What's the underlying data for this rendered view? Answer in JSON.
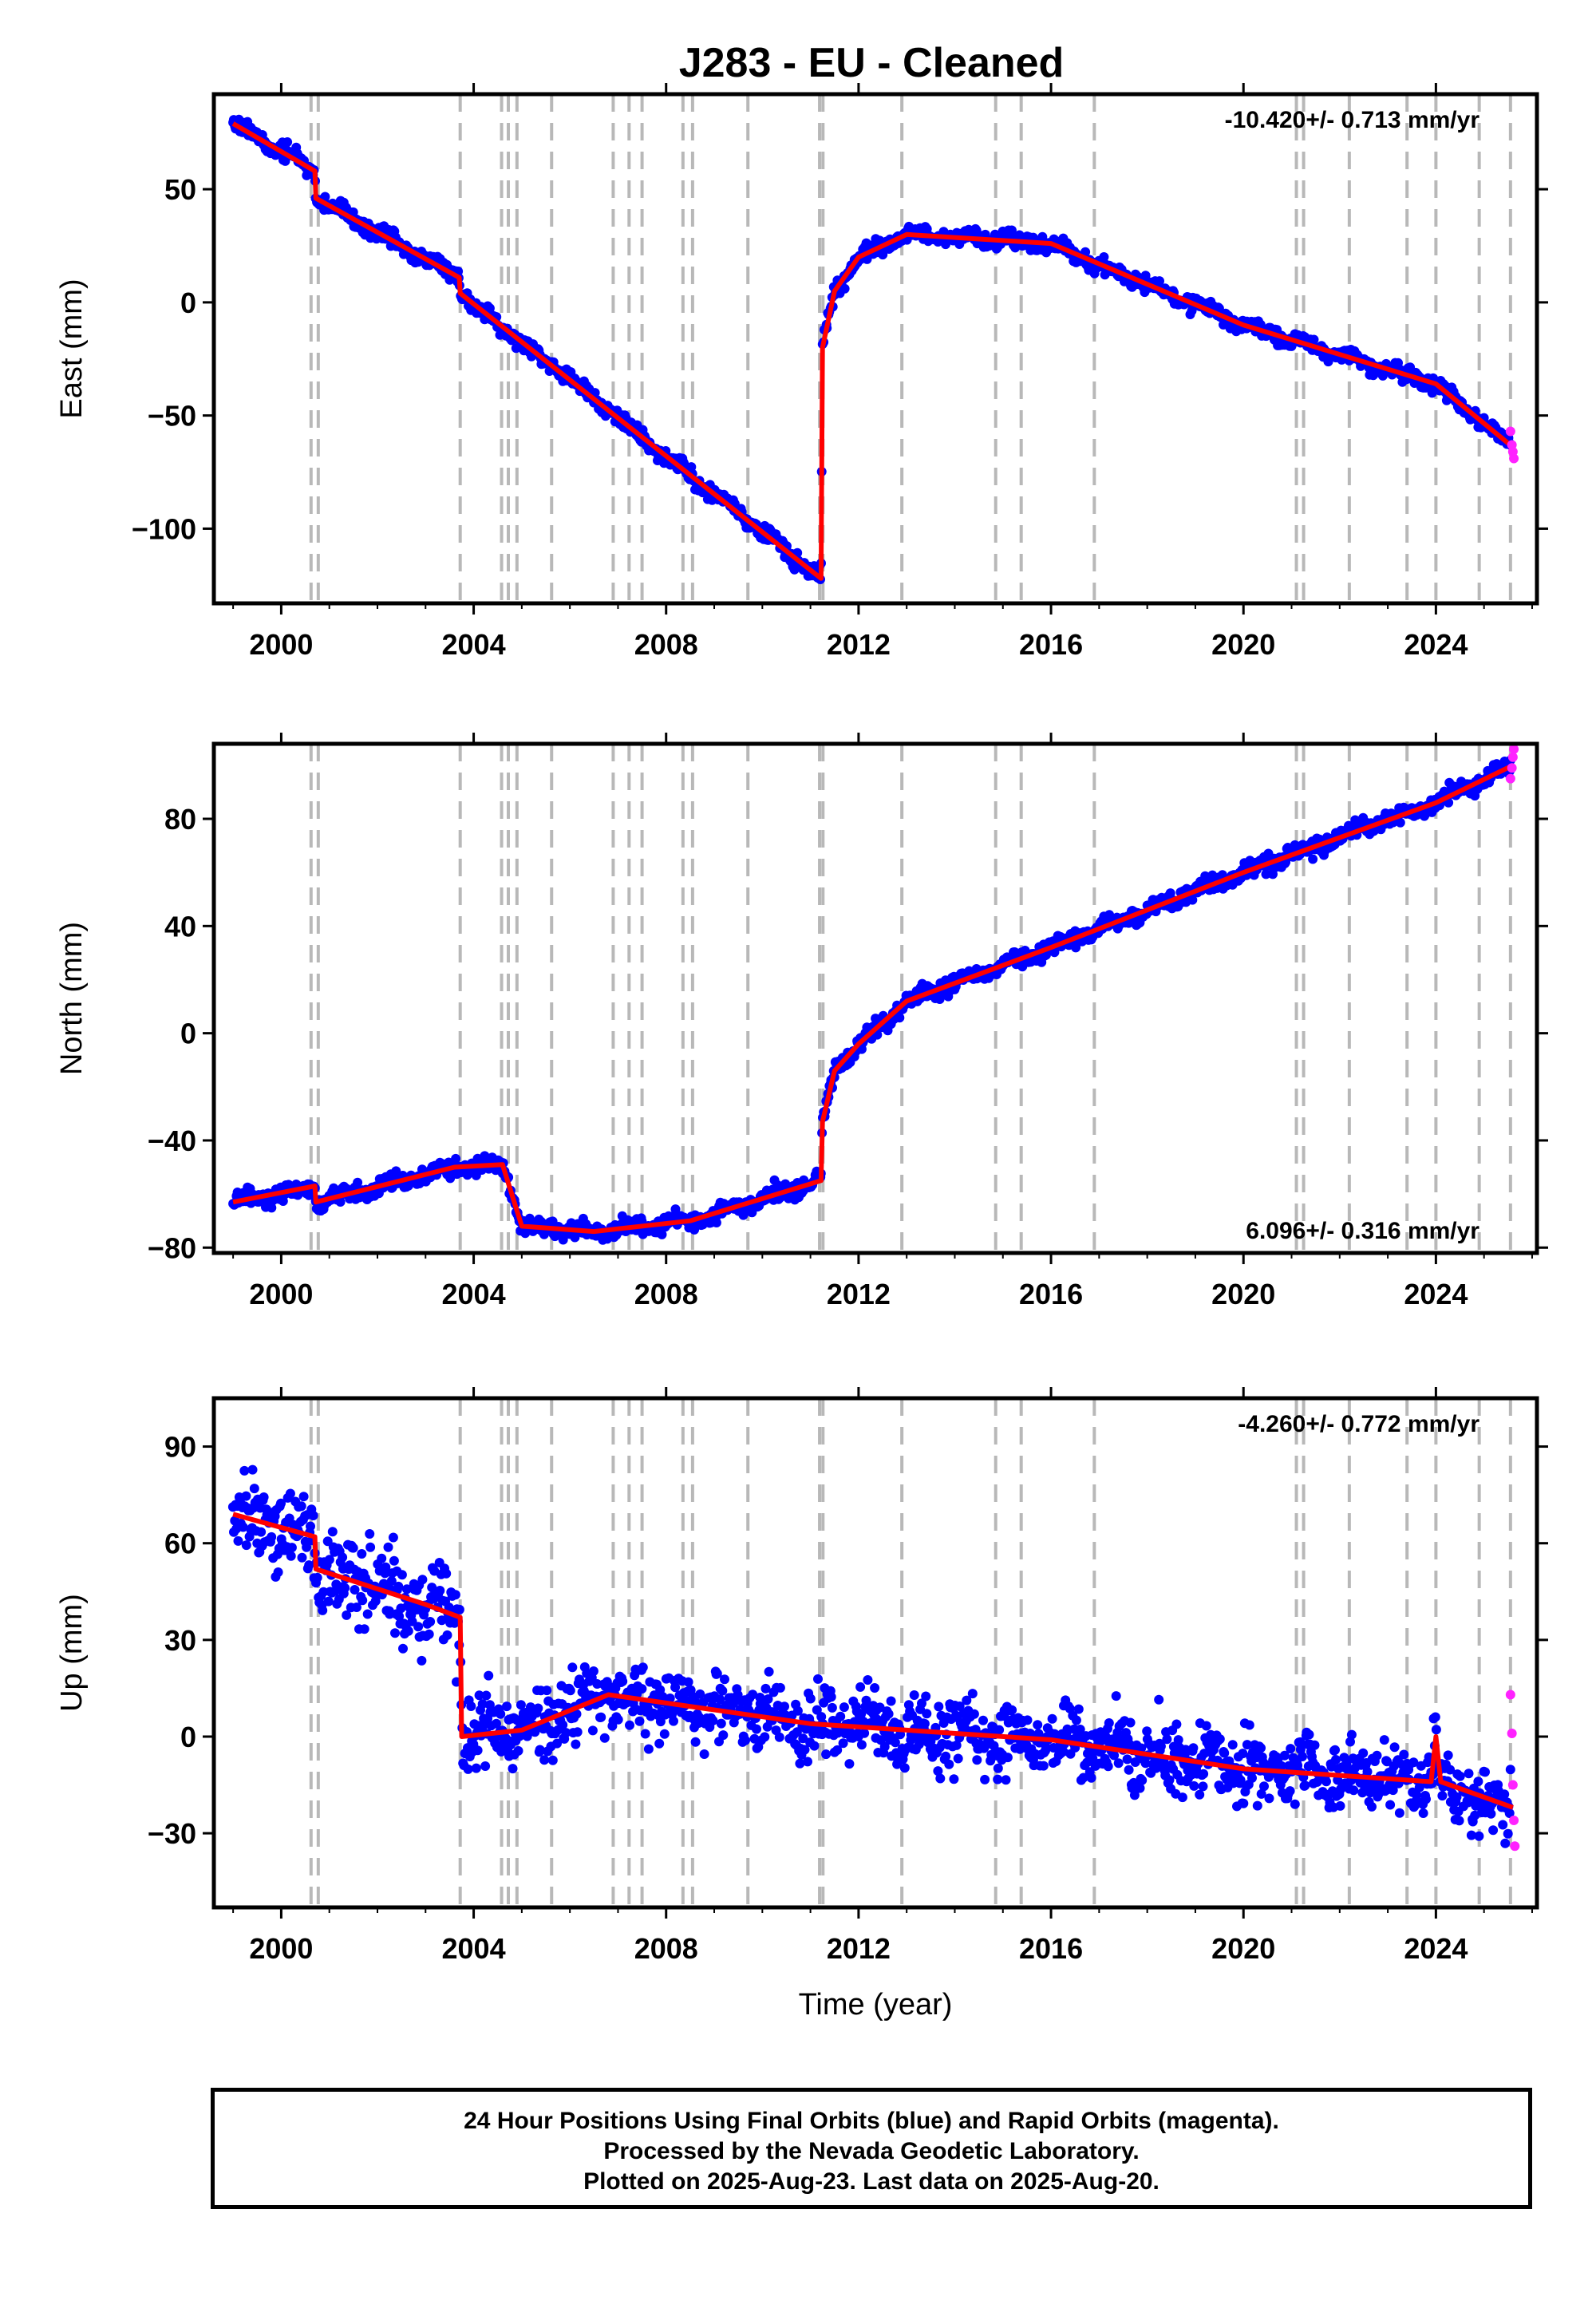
{
  "chart_data": [
    {
      "type": "scatter",
      "title": "J283  - EU - Cleaned",
      "ylabel": "East (mm)",
      "xlabel": "",
      "xlim": [
        1998.6,
        2026.1
      ],
      "ylim": [
        -133,
        92
      ],
      "xticks": [
        2000,
        2004,
        2008,
        2012,
        2016,
        2020,
        2024
      ],
      "yticks": [
        -100,
        -50,
        0,
        50
      ],
      "rate_text": "-10.420+/- 0.713 mm/yr",
      "rate_position": "top-right",
      "noise_mm": 2.4,
      "trend_x": [
        1999.0,
        2000.7,
        2000.72,
        2003.7,
        2003.72,
        2011.22,
        2011.25,
        2011.5,
        2012.0,
        2013.0,
        2016.0,
        2020.0,
        2024.0,
        2025.6
      ],
      "trend_y": [
        79,
        58,
        46,
        11,
        4,
        -122,
        -20,
        5,
        20,
        30,
        26,
        -10,
        -36,
        -64
      ],
      "rapid_x": [
        2025.55,
        2025.58,
        2025.6,
        2025.62
      ],
      "rapid_y": [
        -57,
        -63,
        -66,
        -69
      ],
      "colors": {
        "final": "#0000ff",
        "rapid": "#ff22ff",
        "model": "#ff0000",
        "events": "#b8b8b8"
      }
    },
    {
      "type": "scatter",
      "title": "",
      "ylabel": "North (mm)",
      "xlabel": "",
      "xlim": [
        1998.6,
        2026.1
      ],
      "ylim": [
        -82,
        108
      ],
      "xticks": [
        2000,
        2004,
        2008,
        2012,
        2016,
        2020,
        2024
      ],
      "yticks": [
        -80,
        -40,
        0,
        40,
        80
      ],
      "rate_text": "6.096+/- 0.316 mm/yr",
      "rate_position": "bottom-right",
      "noise_mm": 2.2,
      "trend_x": [
        1999.0,
        2000.7,
        2000.72,
        2003.6,
        2004.6,
        2005.0,
        2006.5,
        2008.5,
        2011.22,
        2011.25,
        2011.5,
        2012.0,
        2013.0,
        2016.0,
        2020.0,
        2024.0,
        2025.6
      ],
      "trend_y": [
        -63,
        -57,
        -63,
        -50,
        -49,
        -72,
        -74,
        -70,
        -55,
        -33,
        -14,
        -4,
        12,
        32,
        60,
        86,
        100
      ],
      "rapid_x": [
        2025.55,
        2025.58,
        2025.6,
        2025.62
      ],
      "rapid_y": [
        95,
        99,
        103,
        106
      ],
      "colors": {
        "final": "#0000ff",
        "rapid": "#ff22ff",
        "model": "#ff0000",
        "events": "#b8b8b8"
      }
    },
    {
      "type": "scatter",
      "title": "",
      "ylabel": "Up (mm)",
      "xlabel": "Time (year)",
      "xlim": [
        1998.6,
        2026.1
      ],
      "ylim": [
        -53,
        105
      ],
      "xticks": [
        2000,
        2004,
        2008,
        2012,
        2016,
        2020,
        2024
      ],
      "yticks": [
        -30,
        0,
        30,
        60,
        90
      ],
      "rate_text": "-4.260+/- 0.772 mm/yr",
      "rate_position": "top-right",
      "noise_mm": 7.5,
      "trend_x": [
        1999.0,
        2000.7,
        2000.72,
        2003.0,
        2003.72,
        2003.75,
        2005.0,
        2006.8,
        2011.0,
        2016.0,
        2020.0,
        2023.9,
        2024.0,
        2024.1,
        2025.6
      ],
      "trend_y": [
        69,
        62,
        52,
        41,
        37,
        0,
        2,
        13,
        4,
        -1,
        -10,
        -14,
        0,
        -14,
        -22
      ],
      "rapid_x": [
        2025.55,
        2025.58,
        2025.6,
        2025.62,
        2025.64
      ],
      "rapid_y": [
        13,
        1,
        -15,
        -26,
        -34
      ],
      "colors": {
        "final": "#0000ff",
        "rapid": "#ff22ff",
        "model": "#ff0000",
        "events": "#b8b8b8"
      }
    }
  ],
  "event_years": [
    2000.62,
    2000.77,
    2003.72,
    2004.58,
    2004.72,
    2004.9,
    2005.62,
    2006.9,
    2007.23,
    2007.5,
    2008.35,
    2008.55,
    2009.7,
    2011.19,
    2011.26,
    2012.9,
    2014.85,
    2015.38,
    2016.9,
    2021.1,
    2021.25,
    2022.2,
    2023.4,
    2024.0,
    2024.9,
    2025.55
  ],
  "footer": {
    "line1": "24 Hour Positions Using Final Orbits (blue) and Rapid Orbits (magenta).",
    "line2": "Processed by the Nevada Geodetic Laboratory.",
    "line3": "Plotted on 2025-Aug-23. Last data on 2025-Aug-20."
  }
}
